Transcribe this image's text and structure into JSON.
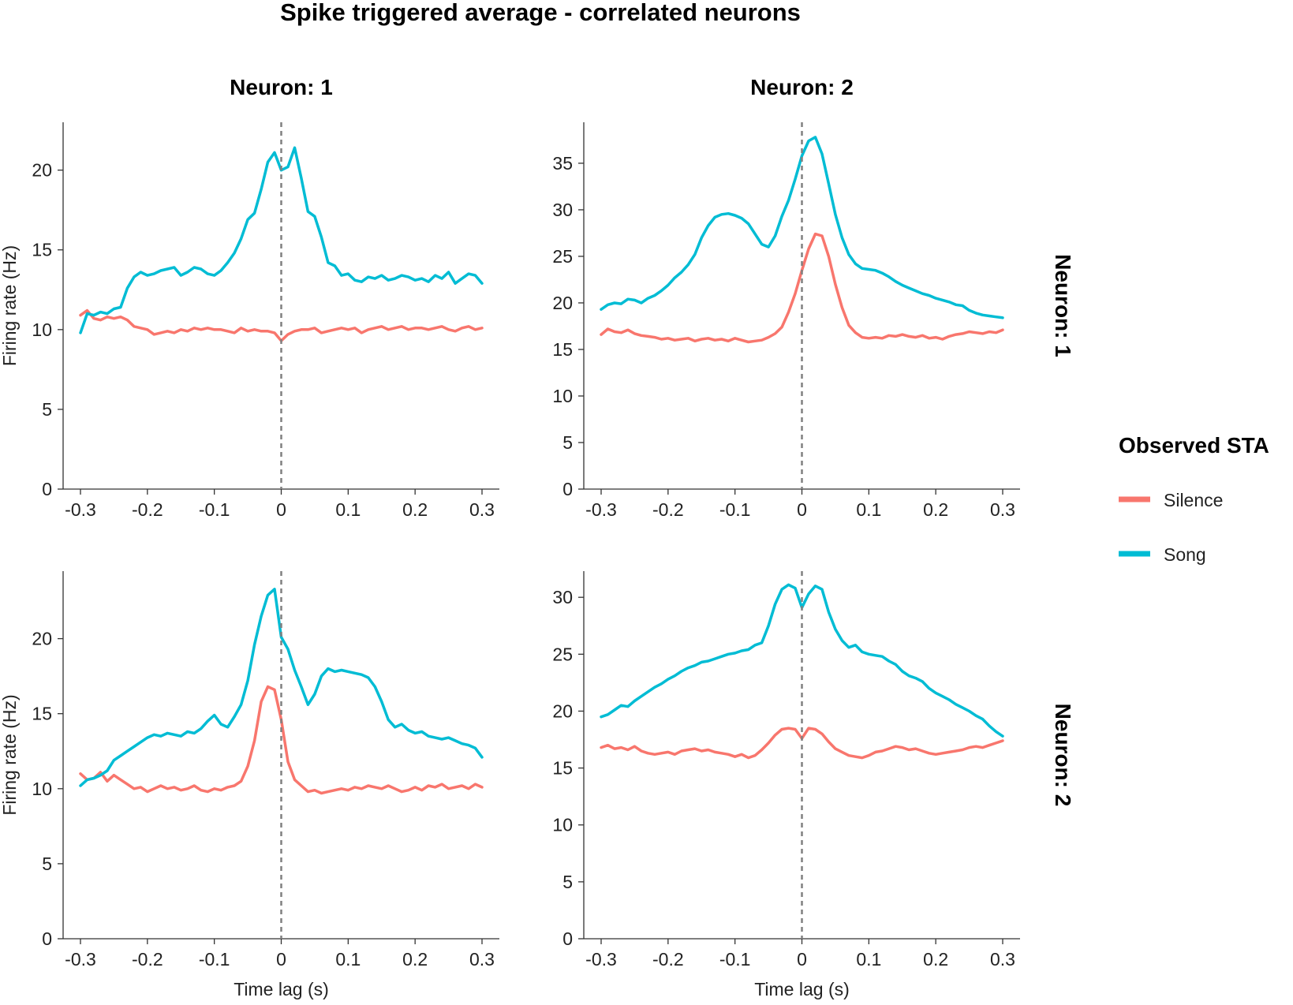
{
  "title": "Spike triggered average - correlated neurons",
  "colors": {
    "Silence": "#F8766D",
    "Song": "#00BCD4"
  },
  "legend": {
    "title": "Observed STA",
    "items": [
      {
        "label": "Silence",
        "color": "#F8766D"
      },
      {
        "label": "Song",
        "color": "#00BCD4"
      }
    ]
  },
  "chart_data": [
    {
      "type": "line",
      "column_strip": "Neuron: 1",
      "row_strip": "",
      "xlabel": "",
      "ylabel": "Firing rate (Hz)",
      "xlim": [
        -0.3,
        0.3
      ],
      "ylim": [
        0,
        23
      ],
      "xticks": [
        -0.3,
        -0.2,
        -0.1,
        0,
        0.1,
        0.2,
        0.3
      ],
      "xtick_labels": [
        "-0.3",
        "-0.2",
        "-0.1",
        "0",
        "0.1",
        "0.2",
        "0.3"
      ],
      "yticks": [
        0,
        5,
        10,
        15,
        20
      ],
      "ytick_labels": [
        "0",
        "5",
        "10",
        "15",
        "20"
      ],
      "vline": 0,
      "x": [
        -0.3,
        -0.29,
        -0.28,
        -0.27,
        -0.26,
        -0.25,
        -0.24,
        -0.23,
        -0.22,
        -0.21,
        -0.2,
        -0.19,
        -0.18,
        -0.17,
        -0.16,
        -0.15,
        -0.14,
        -0.13,
        -0.12,
        -0.11,
        -0.1,
        -0.09,
        -0.08,
        -0.07,
        -0.06,
        -0.05,
        -0.04,
        -0.03,
        -0.02,
        -0.01,
        0,
        0.01,
        0.02,
        0.03,
        0.04,
        0.05,
        0.06,
        0.07,
        0.08,
        0.09,
        0.1,
        0.11,
        0.12,
        0.13,
        0.14,
        0.15,
        0.16,
        0.17,
        0.18,
        0.19,
        0.2,
        0.21,
        0.22,
        0.23,
        0.24,
        0.25,
        0.26,
        0.27,
        0.28,
        0.29,
        0.3
      ],
      "series": [
        {
          "name": "Silence",
          "values": [
            10.9,
            11.2,
            10.7,
            10.6,
            10.8,
            10.7,
            10.8,
            10.6,
            10.2,
            10.1,
            10.0,
            9.7,
            9.8,
            9.9,
            9.8,
            10.0,
            9.9,
            10.1,
            10.0,
            10.1,
            10.0,
            10.0,
            9.9,
            9.8,
            10.1,
            9.9,
            10.0,
            9.9,
            9.9,
            9.8,
            9.3,
            9.7,
            9.9,
            10.0,
            10.0,
            10.1,
            9.8,
            9.9,
            10.0,
            10.1,
            10.0,
            10.1,
            9.8,
            10.0,
            10.1,
            10.2,
            10.0,
            10.1,
            10.2,
            10.0,
            10.1,
            10.1,
            10.0,
            10.1,
            10.2,
            10.0,
            9.9,
            10.1,
            10.2,
            10.0,
            10.1
          ]
        },
        {
          "name": "Song",
          "values": [
            9.8,
            11.0,
            10.9,
            11.1,
            11.0,
            11.3,
            11.4,
            12.6,
            13.3,
            13.6,
            13.4,
            13.5,
            13.7,
            13.8,
            13.9,
            13.4,
            13.6,
            13.9,
            13.8,
            13.5,
            13.4,
            13.7,
            14.2,
            14.8,
            15.7,
            16.9,
            17.3,
            18.8,
            20.5,
            21.1,
            20.0,
            20.2,
            21.4,
            19.5,
            17.4,
            17.1,
            15.8,
            14.2,
            14.0,
            13.4,
            13.5,
            13.1,
            13.0,
            13.3,
            13.2,
            13.4,
            13.1,
            13.2,
            13.4,
            13.3,
            13.1,
            13.2,
            13.0,
            13.4,
            13.2,
            13.6,
            12.9,
            13.2,
            13.5,
            13.4,
            12.9
          ]
        }
      ]
    },
    {
      "type": "line",
      "column_strip": "Neuron: 2",
      "row_strip": "Neuron: 1",
      "xlabel": "",
      "ylabel": "",
      "xlim": [
        -0.3,
        0.3
      ],
      "ylim": [
        0,
        39.4
      ],
      "xticks": [
        -0.3,
        -0.2,
        -0.1,
        0,
        0.1,
        0.2,
        0.3
      ],
      "xtick_labels": [
        "-0.3",
        "-0.2",
        "-0.1",
        "0",
        "0.1",
        "0.2",
        "0.3"
      ],
      "yticks": [
        0,
        5,
        10,
        15,
        20,
        25,
        30,
        35
      ],
      "ytick_labels": [
        "0",
        "5",
        "10",
        "15",
        "20",
        "25",
        "30",
        "35"
      ],
      "vline": 0,
      "x": [
        -0.3,
        -0.29,
        -0.28,
        -0.27,
        -0.26,
        -0.25,
        -0.24,
        -0.23,
        -0.22,
        -0.21,
        -0.2,
        -0.19,
        -0.18,
        -0.17,
        -0.16,
        -0.15,
        -0.14,
        -0.13,
        -0.12,
        -0.11,
        -0.1,
        -0.09,
        -0.08,
        -0.07,
        -0.06,
        -0.05,
        -0.04,
        -0.03,
        -0.02,
        -0.01,
        0,
        0.01,
        0.02,
        0.03,
        0.04,
        0.05,
        0.06,
        0.07,
        0.08,
        0.09,
        0.1,
        0.11,
        0.12,
        0.13,
        0.14,
        0.15,
        0.16,
        0.17,
        0.18,
        0.19,
        0.2,
        0.21,
        0.22,
        0.23,
        0.24,
        0.25,
        0.26,
        0.27,
        0.28,
        0.29,
        0.3
      ],
      "series": [
        {
          "name": "Silence",
          "values": [
            16.6,
            17.2,
            16.9,
            16.8,
            17.1,
            16.7,
            16.5,
            16.4,
            16.3,
            16.1,
            16.2,
            16.0,
            16.1,
            16.2,
            15.9,
            16.1,
            16.2,
            16.0,
            16.1,
            15.9,
            16.2,
            16.0,
            15.8,
            15.9,
            16.0,
            16.3,
            16.7,
            17.4,
            19.0,
            21.0,
            23.5,
            25.8,
            27.4,
            27.2,
            25.0,
            22.0,
            19.5,
            17.6,
            16.8,
            16.3,
            16.2,
            16.3,
            16.2,
            16.5,
            16.4,
            16.6,
            16.4,
            16.3,
            16.5,
            16.2,
            16.3,
            16.1,
            16.4,
            16.6,
            16.7,
            16.9,
            16.8,
            16.7,
            16.9,
            16.8,
            17.1
          ]
        },
        {
          "name": "Song",
          "values": [
            19.3,
            19.8,
            20.0,
            19.9,
            20.4,
            20.3,
            20.0,
            20.5,
            20.8,
            21.3,
            21.9,
            22.7,
            23.3,
            24.1,
            25.2,
            27.0,
            28.3,
            29.2,
            29.5,
            29.6,
            29.4,
            29.1,
            28.5,
            27.4,
            26.3,
            26.0,
            27.2,
            29.3,
            31.0,
            33.3,
            35.8,
            37.4,
            37.8,
            36.0,
            32.8,
            29.5,
            27.0,
            25.2,
            24.2,
            23.7,
            23.6,
            23.5,
            23.2,
            22.8,
            22.3,
            21.9,
            21.6,
            21.3,
            21.0,
            20.8,
            20.5,
            20.3,
            20.1,
            19.8,
            19.7,
            19.2,
            18.9,
            18.7,
            18.6,
            18.5,
            18.4
          ]
        }
      ]
    },
    {
      "type": "line",
      "column_strip": "",
      "row_strip": "",
      "xlabel": "Time lag (s)",
      "ylabel": "Firing rate (Hz)",
      "xlim": [
        -0.3,
        0.3
      ],
      "ylim": [
        0,
        24.5
      ],
      "xticks": [
        -0.3,
        -0.2,
        -0.1,
        0,
        0.1,
        0.2,
        0.3
      ],
      "xtick_labels": [
        "-0.3",
        "-0.2",
        "-0.1",
        "0",
        "0.1",
        "0.2",
        "0.3"
      ],
      "yticks": [
        0,
        5,
        10,
        15,
        20
      ],
      "ytick_labels": [
        "0",
        "5",
        "10",
        "15",
        "20"
      ],
      "vline": 0,
      "x": [
        -0.3,
        -0.29,
        -0.28,
        -0.27,
        -0.26,
        -0.25,
        -0.24,
        -0.23,
        -0.22,
        -0.21,
        -0.2,
        -0.19,
        -0.18,
        -0.17,
        -0.16,
        -0.15,
        -0.14,
        -0.13,
        -0.12,
        -0.11,
        -0.1,
        -0.09,
        -0.08,
        -0.07,
        -0.06,
        -0.05,
        -0.04,
        -0.03,
        -0.02,
        -0.01,
        0,
        0.01,
        0.02,
        0.03,
        0.04,
        0.05,
        0.06,
        0.07,
        0.08,
        0.09,
        0.1,
        0.11,
        0.12,
        0.13,
        0.14,
        0.15,
        0.16,
        0.17,
        0.18,
        0.19,
        0.2,
        0.21,
        0.22,
        0.23,
        0.24,
        0.25,
        0.26,
        0.27,
        0.28,
        0.29,
        0.3
      ],
      "series": [
        {
          "name": "Silence",
          "values": [
            11.0,
            10.6,
            10.7,
            11.1,
            10.5,
            10.9,
            10.6,
            10.3,
            10.0,
            10.1,
            9.8,
            10.0,
            10.2,
            10.0,
            10.1,
            9.9,
            10.0,
            10.2,
            9.9,
            9.8,
            10.0,
            9.9,
            10.1,
            10.2,
            10.5,
            11.5,
            13.2,
            15.8,
            16.8,
            16.6,
            14.6,
            11.8,
            10.6,
            10.2,
            9.8,
            9.9,
            9.7,
            9.8,
            9.9,
            10.0,
            9.9,
            10.1,
            10.0,
            10.2,
            10.1,
            10.0,
            10.2,
            10.0,
            9.8,
            9.9,
            10.1,
            9.9,
            10.2,
            10.1,
            10.3,
            10.0,
            10.1,
            10.2,
            10.0,
            10.3,
            10.1
          ]
        },
        {
          "name": "Song",
          "values": [
            10.2,
            10.6,
            10.7,
            10.9,
            11.2,
            11.9,
            12.2,
            12.5,
            12.8,
            13.1,
            13.4,
            13.6,
            13.5,
            13.7,
            13.6,
            13.5,
            13.8,
            13.7,
            14.0,
            14.5,
            14.9,
            14.3,
            14.1,
            14.8,
            15.6,
            17.2,
            19.6,
            21.5,
            22.9,
            23.3,
            20.1,
            19.3,
            17.9,
            16.8,
            15.6,
            16.3,
            17.5,
            18.0,
            17.8,
            17.9,
            17.8,
            17.7,
            17.6,
            17.4,
            16.8,
            15.8,
            14.6,
            14.1,
            14.3,
            13.9,
            13.7,
            13.8,
            13.5,
            13.4,
            13.3,
            13.4,
            13.2,
            13.0,
            12.9,
            12.7,
            12.1
          ]
        }
      ]
    },
    {
      "type": "line",
      "column_strip": "",
      "row_strip": "Neuron: 2",
      "xlabel": "Time lag (s)",
      "ylabel": "",
      "xlim": [
        -0.3,
        0.3
      ],
      "ylim": [
        0,
        32.3
      ],
      "xticks": [
        -0.3,
        -0.2,
        -0.1,
        0,
        0.1,
        0.2,
        0.3
      ],
      "xtick_labels": [
        "-0.3",
        "-0.2",
        "-0.1",
        "0",
        "0.1",
        "0.2",
        "0.3"
      ],
      "yticks": [
        0,
        5,
        10,
        15,
        20,
        25,
        30
      ],
      "ytick_labels": [
        "0",
        "5",
        "10",
        "15",
        "20",
        "25",
        "30"
      ],
      "vline": 0,
      "x": [
        -0.3,
        -0.29,
        -0.28,
        -0.27,
        -0.26,
        -0.25,
        -0.24,
        -0.23,
        -0.22,
        -0.21,
        -0.2,
        -0.19,
        -0.18,
        -0.17,
        -0.16,
        -0.15,
        -0.14,
        -0.13,
        -0.12,
        -0.11,
        -0.1,
        -0.09,
        -0.08,
        -0.07,
        -0.06,
        -0.05,
        -0.04,
        -0.03,
        -0.02,
        -0.01,
        0,
        0.01,
        0.02,
        0.03,
        0.04,
        0.05,
        0.06,
        0.07,
        0.08,
        0.09,
        0.1,
        0.11,
        0.12,
        0.13,
        0.14,
        0.15,
        0.16,
        0.17,
        0.18,
        0.19,
        0.2,
        0.21,
        0.22,
        0.23,
        0.24,
        0.25,
        0.26,
        0.27,
        0.28,
        0.29,
        0.3
      ],
      "series": [
        {
          "name": "Silence",
          "values": [
            16.8,
            17.0,
            16.7,
            16.8,
            16.6,
            16.9,
            16.5,
            16.3,
            16.2,
            16.3,
            16.4,
            16.2,
            16.5,
            16.6,
            16.7,
            16.5,
            16.6,
            16.4,
            16.3,
            16.2,
            16.0,
            16.2,
            15.9,
            16.1,
            16.6,
            17.2,
            17.9,
            18.4,
            18.5,
            18.4,
            17.6,
            18.5,
            18.4,
            18.0,
            17.3,
            16.7,
            16.4,
            16.1,
            16.0,
            15.9,
            16.1,
            16.4,
            16.5,
            16.7,
            16.9,
            16.8,
            16.6,
            16.7,
            16.5,
            16.3,
            16.2,
            16.3,
            16.4,
            16.5,
            16.6,
            16.8,
            16.9,
            16.8,
            17.0,
            17.2,
            17.4
          ]
        },
        {
          "name": "Song",
          "values": [
            19.5,
            19.7,
            20.1,
            20.5,
            20.4,
            20.9,
            21.3,
            21.7,
            22.1,
            22.4,
            22.8,
            23.1,
            23.5,
            23.8,
            24.0,
            24.3,
            24.4,
            24.6,
            24.8,
            25.0,
            25.1,
            25.3,
            25.4,
            25.8,
            26.0,
            27.5,
            29.4,
            30.7,
            31.1,
            30.8,
            29.1,
            30.3,
            31.0,
            30.7,
            28.7,
            27.2,
            26.2,
            25.6,
            25.8,
            25.2,
            25.0,
            24.9,
            24.8,
            24.4,
            24.1,
            23.5,
            23.1,
            22.9,
            22.6,
            22.0,
            21.6,
            21.3,
            21.0,
            20.6,
            20.3,
            20.0,
            19.6,
            19.3,
            18.7,
            18.2,
            17.8
          ]
        }
      ]
    }
  ]
}
